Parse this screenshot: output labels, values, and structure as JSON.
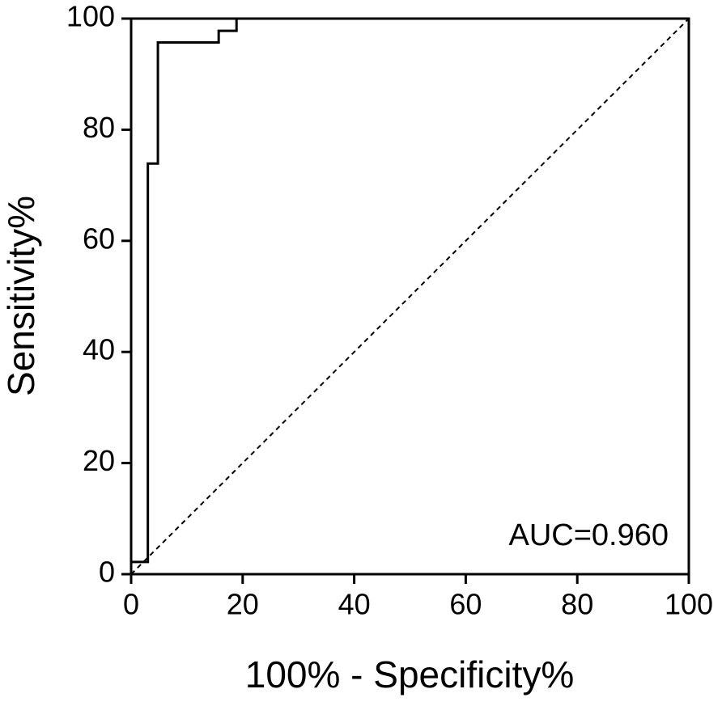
{
  "chart_data": {
    "type": "line",
    "xlabel": "100% - Specificity%",
    "ylabel": "Sensitivity%",
    "annotation": "AUC=0.960",
    "xlim": [
      0,
      100
    ],
    "ylim": [
      0,
      100
    ],
    "xticks": [
      0,
      20,
      40,
      60,
      80,
      100
    ],
    "yticks": [
      0,
      20,
      40,
      60,
      80,
      100
    ],
    "grid": false,
    "series": [
      {
        "color": "#000000",
        "dashed": false,
        "x": [
          0,
          0,
          3,
          3,
          4.8,
          4.8,
          15.7,
          15.7,
          18.9,
          18.9,
          100
        ],
        "values": [
          0,
          2.2,
          2.2,
          73.9,
          73.9,
          95.7,
          95.7,
          97.8,
          97.8,
          100,
          100
        ]
      },
      {
        "color": "#000000",
        "dashed": true,
        "x": [
          0,
          100
        ],
        "values": [
          0,
          100
        ]
      }
    ]
  }
}
